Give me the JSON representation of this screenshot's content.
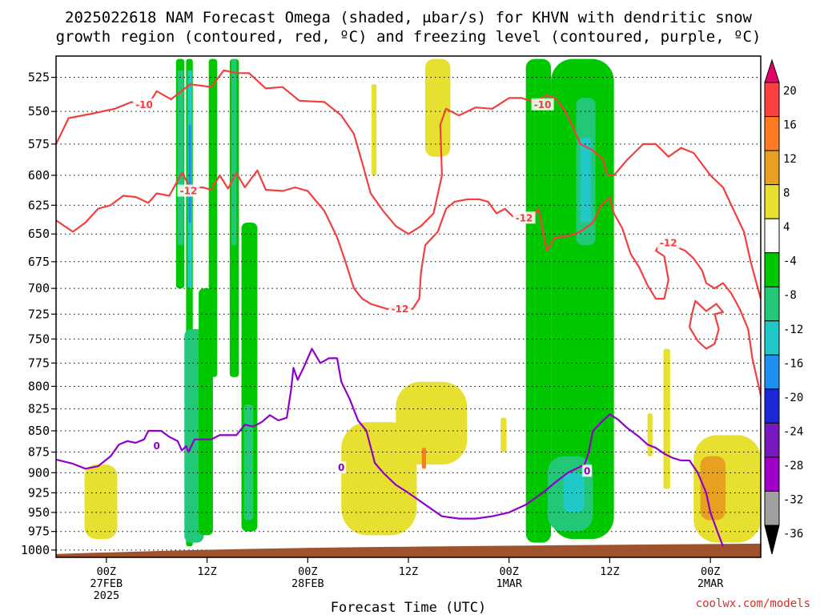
{
  "chart_data": {
    "type": "heatmap",
    "title_line1": "2025022618 NAM Forecast Omega (shaded, μbar/s) for KHVN with dendritic snow",
    "title_line2": "growth region (contoured, red, ºC) and freezing level (contoured, purple, ºC)",
    "xlabel": "Forecast Time (UTC)",
    "x_ticks": [
      {
        "hour": 6,
        "lines": [
          "00Z",
          "27FEB",
          "2025"
        ]
      },
      {
        "hour": 18,
        "lines": [
          "12Z"
        ]
      },
      {
        "hour": 30,
        "lines": [
          "00Z",
          "28FEB"
        ]
      },
      {
        "hour": 42,
        "lines": [
          "12Z"
        ]
      },
      {
        "hour": 54,
        "lines": [
          "00Z",
          "1MAR"
        ]
      },
      {
        "hour": 66,
        "lines": [
          "12Z"
        ]
      },
      {
        "hour": 78,
        "lines": [
          "00Z",
          "2MAR"
        ]
      }
    ],
    "xlim": [
      0,
      84
    ],
    "y_levels": [
      525,
      550,
      575,
      600,
      625,
      650,
      675,
      700,
      725,
      750,
      775,
      800,
      825,
      850,
      875,
      900,
      925,
      950,
      975,
      1000
    ],
    "ylim": [
      1010,
      510
    ],
    "y_scale": "log-pressure",
    "colorbar_ticks": [
      20,
      16,
      12,
      8,
      4,
      -4,
      -8,
      -12,
      -16,
      -20,
      -24,
      -28,
      -32,
      -36
    ],
    "colorbar_colors": [
      "#e8006e",
      "#ff4040",
      "#ff7a20",
      "#e8a020",
      "#e8e030",
      "#ffffff",
      "#00c800",
      "#22c878",
      "#20c8c8",
      "#1e90f0",
      "#1c28d8",
      "#7a18c0",
      "#a000c8",
      "#a0a0a0",
      "#000000"
    ],
    "contour_labels": {
      "dendritic_minus10": "-10",
      "dendritic_minus12": "-12",
      "freezing": "0"
    },
    "colors": {
      "dendritic": "#f04040",
      "freezing": "#9000c8",
      "ground": "#a0522d"
    },
    "shading": [
      {
        "color": "#00c800",
        "t0": 15.5,
        "t1": 16.3,
        "p0": 512,
        "p1": 995
      },
      {
        "color": "#22c878",
        "t0": 15.3,
        "t1": 17.6,
        "p0": 740,
        "p1": 990
      },
      {
        "color": "#20c8c8",
        "t0": 15.7,
        "t1": 16.2,
        "p0": 520,
        "p1": 700
      },
      {
        "color": "#1e90f0",
        "t0": 15.8,
        "t1": 16.1,
        "p0": 560,
        "p1": 640
      },
      {
        "color": "#00c800",
        "t0": 14.3,
        "t1": 15.3,
        "p0": 512,
        "p1": 700
      },
      {
        "color": "#22c878",
        "t0": 14.5,
        "t1": 15.2,
        "p0": 520,
        "p1": 660
      },
      {
        "color": "#00c800",
        "t0": 17.0,
        "t1": 18.7,
        "p0": 700,
        "p1": 980
      },
      {
        "color": "#00c800",
        "t0": 18.2,
        "t1": 19.2,
        "p0": 512,
        "p1": 790
      },
      {
        "color": "#00c800",
        "t0": 20.7,
        "t1": 21.8,
        "p0": 512,
        "p1": 790
      },
      {
        "color": "#22c878",
        "t0": 20.9,
        "t1": 21.5,
        "p0": 512,
        "p1": 660
      },
      {
        "color": "#00c800",
        "t0": 22.1,
        "t1": 24.0,
        "p0": 640,
        "p1": 975
      },
      {
        "color": "#22c878",
        "t0": 22.4,
        "t1": 23.5,
        "p0": 820,
        "p1": 960
      },
      {
        "color": "#e8e030",
        "t0": 3.4,
        "t1": 7.3,
        "p0": 890,
        "p1": 985
      },
      {
        "color": "#e8e030",
        "t0": 34.0,
        "t1": 43.0,
        "p0": 840,
        "p1": 980
      },
      {
        "color": "#e8e030",
        "t0": 40.5,
        "t1": 49.0,
        "p0": 795,
        "p1": 890
      },
      {
        "color": "#ff7a20",
        "t0": 43.6,
        "t1": 44.1,
        "p0": 870,
        "p1": 895
      },
      {
        "color": "#e8e030",
        "t0": 37.6,
        "t1": 38.2,
        "p0": 530,
        "p1": 600
      },
      {
        "color": "#e8e030",
        "t0": 44.0,
        "t1": 47.0,
        "p0": 512,
        "p1": 585
      },
      {
        "color": "#e8e030",
        "t0": 53.0,
        "t1": 53.7,
        "p0": 835,
        "p1": 875
      },
      {
        "color": "#00c800",
        "t0": 56.0,
        "t1": 59.0,
        "p0": 512,
        "p1": 990
      },
      {
        "color": "#00c800",
        "t0": 59.0,
        "t1": 66.5,
        "p0": 512,
        "p1": 985
      },
      {
        "color": "#22c878",
        "t0": 58.6,
        "t1": 64.0,
        "p0": 880,
        "p1": 975
      },
      {
        "color": "#22c878",
        "t0": 62.0,
        "t1": 64.3,
        "p0": 540,
        "p1": 660
      },
      {
        "color": "#20c8c8",
        "t0": 62.5,
        "t1": 63.8,
        "p0": 570,
        "p1": 640
      },
      {
        "color": "#20c8c8",
        "t0": 60.5,
        "t1": 63.0,
        "p0": 900,
        "p1": 950
      },
      {
        "color": "#e8e030",
        "t0": 70.5,
        "t1": 71.1,
        "p0": 830,
        "p1": 880
      },
      {
        "color": "#e8e030",
        "t0": 72.4,
        "t1": 73.2,
        "p0": 760,
        "p1": 920
      },
      {
        "color": "#e8e030",
        "t0": 76.0,
        "t1": 84.0,
        "p0": 855,
        "p1": 990
      },
      {
        "color": "#e8a020",
        "t0": 76.8,
        "t1": 79.8,
        "p0": 880,
        "p1": 960
      }
    ],
    "series": [
      {
        "name": "-10",
        "color": "#f04040",
        "points": [
          [
            0,
            575
          ],
          [
            1.5,
            555
          ],
          [
            4,
            552
          ],
          [
            7,
            548
          ],
          [
            9,
            543
          ],
          [
            10.8,
            547
          ],
          [
            12,
            535
          ],
          [
            13.7,
            541
          ],
          [
            16,
            530
          ],
          [
            18.5,
            532
          ],
          [
            20,
            520
          ],
          [
            21.5,
            522
          ],
          [
            23,
            522
          ],
          [
            25,
            533
          ],
          [
            27,
            532
          ],
          [
            29,
            542
          ],
          [
            32,
            543
          ],
          [
            34,
            553
          ],
          [
            35.5,
            567
          ],
          [
            36.5,
            590
          ],
          [
            37.5,
            615
          ],
          [
            39,
            630
          ],
          [
            40.5,
            643
          ],
          [
            42,
            650
          ],
          [
            43.5,
            643
          ],
          [
            45,
            632
          ],
          [
            46,
            600
          ],
          [
            45.8,
            560
          ],
          [
            46.5,
            548
          ],
          [
            48,
            553
          ],
          [
            50,
            547
          ],
          [
            52,
            548
          ],
          [
            54,
            540
          ],
          [
            55.5,
            540
          ],
          [
            57,
            543
          ],
          [
            58.5,
            538
          ],
          [
            59.5,
            540
          ],
          [
            60.5,
            548
          ],
          [
            61.5,
            560
          ],
          [
            62.5,
            575
          ],
          [
            64,
            580
          ],
          [
            65.2,
            587
          ],
          [
            65.7,
            600
          ],
          [
            66.5,
            600
          ],
          [
            68,
            588
          ],
          [
            70,
            575
          ],
          [
            71.5,
            575
          ],
          [
            73,
            585
          ],
          [
            74.5,
            578
          ],
          [
            76,
            582
          ],
          [
            78,
            600
          ],
          [
            79.5,
            610
          ],
          [
            80.5,
            625
          ],
          [
            82,
            648
          ],
          [
            82.8,
            675
          ],
          [
            84,
            710
          ]
        ]
      },
      {
        "name": "-12",
        "color": "#f04040",
        "points": [
          [
            0,
            638
          ],
          [
            2,
            648
          ],
          [
            3.5,
            640
          ],
          [
            5,
            628
          ],
          [
            6.5,
            625
          ],
          [
            8,
            617
          ],
          [
            9.5,
            618
          ],
          [
            11,
            623
          ],
          [
            12,
            615
          ],
          [
            13.5,
            617
          ],
          [
            15,
            598
          ],
          [
            16,
            610
          ],
          [
            17.5,
            610
          ],
          [
            18.5,
            612
          ],
          [
            19.5,
            600
          ],
          [
            20.5,
            611
          ],
          [
            21.5,
            598
          ],
          [
            22.5,
            610
          ],
          [
            24,
            596
          ],
          [
            25,
            612
          ],
          [
            27,
            613
          ],
          [
            28.5,
            610
          ],
          [
            30,
            613
          ],
          [
            32,
            630
          ],
          [
            33.5,
            653
          ],
          [
            34.5,
            675
          ],
          [
            35.5,
            700
          ],
          [
            36.5,
            710
          ],
          [
            37.5,
            715
          ],
          [
            39.5,
            720
          ],
          [
            40.5,
            718
          ],
          [
            41.5,
            718
          ],
          [
            42.5,
            720
          ],
          [
            43.3,
            710
          ],
          [
            43.5,
            685
          ],
          [
            44,
            660
          ],
          [
            45.5,
            648
          ],
          [
            46.5,
            628
          ],
          [
            47.5,
            622
          ],
          [
            49,
            620
          ],
          [
            50.5,
            620
          ],
          [
            51.5,
            622
          ],
          [
            52.5,
            632
          ],
          [
            53.5,
            628
          ],
          [
            54.5,
            635
          ],
          [
            55.5,
            633
          ],
          [
            56.5,
            638
          ],
          [
            57.5,
            628
          ],
          [
            58.5,
            665
          ],
          [
            59.5,
            653
          ],
          [
            61,
            652
          ],
          [
            62.5,
            648
          ],
          [
            64,
            640
          ],
          [
            65,
            625
          ],
          [
            66,
            618
          ],
          [
            66.5,
            632
          ],
          [
            67.5,
            645
          ],
          [
            68.5,
            668
          ],
          [
            69.5,
            680
          ],
          [
            70.5,
            697
          ],
          [
            71.5,
            710
          ],
          [
            72.5,
            710
          ],
          [
            73,
            692
          ],
          [
            72.5,
            670
          ],
          [
            71.5,
            665
          ],
          [
            72,
            658
          ],
          [
            73.5,
            660
          ],
          [
            75,
            665
          ],
          [
            76,
            672
          ],
          [
            77,
            683
          ],
          [
            77.5,
            695
          ],
          [
            78.5,
            700
          ],
          [
            79.5,
            695
          ],
          [
            80.5,
            705
          ],
          [
            81.5,
            720
          ],
          [
            82.5,
            740
          ],
          [
            83,
            770
          ],
          [
            83.5,
            790
          ],
          [
            84,
            810
          ]
        ]
      },
      {
        "name": "-12b",
        "color": "#f04040",
        "points": [
          [
            75.5,
            738
          ],
          [
            76.5,
            752
          ],
          [
            77.5,
            760
          ],
          [
            78.5,
            755
          ],
          [
            79,
            740
          ],
          [
            78.5,
            725
          ],
          [
            79.5,
            723
          ],
          [
            78.7,
            715
          ],
          [
            77.5,
            722
          ],
          [
            76.2,
            712
          ],
          [
            75.8,
            725
          ],
          [
            75.5,
            738
          ]
        ]
      },
      {
        "name": "0",
        "color": "#9000c8",
        "points": [
          [
            0,
            884
          ],
          [
            2,
            889
          ],
          [
            3.5,
            895
          ],
          [
            5,
            892
          ],
          [
            6.5,
            880
          ],
          [
            7.5,
            866
          ],
          [
            8.5,
            862
          ],
          [
            9.5,
            864
          ],
          [
            10.5,
            860
          ],
          [
            11,
            850
          ],
          [
            12.5,
            850
          ],
          [
            13.5,
            857
          ],
          [
            14.5,
            862
          ],
          [
            15,
            873
          ],
          [
            15.5,
            868
          ],
          [
            15.8,
            875
          ],
          [
            16.5,
            860
          ],
          [
            17.5,
            860
          ],
          [
            18.5,
            860
          ],
          [
            19.5,
            855
          ],
          [
            20.5,
            855
          ],
          [
            21.5,
            855
          ],
          [
            22.5,
            843
          ],
          [
            23.5,
            845
          ],
          [
            24.5,
            840
          ],
          [
            25.5,
            832
          ],
          [
            26.5,
            838
          ],
          [
            27.5,
            835
          ],
          [
            28,
            805
          ],
          [
            28.3,
            780
          ],
          [
            28.8,
            793
          ],
          [
            29.5,
            780
          ],
          [
            30.5,
            760
          ],
          [
            31.5,
            775
          ],
          [
            32.5,
            770
          ],
          [
            33.5,
            770
          ],
          [
            34,
            795
          ],
          [
            35,
            814
          ],
          [
            36,
            838
          ],
          [
            37,
            850
          ],
          [
            38,
            888
          ],
          [
            39,
            900
          ],
          [
            40.5,
            915
          ],
          [
            42,
            925
          ],
          [
            44,
            940
          ],
          [
            46,
            955
          ],
          [
            48,
            958
          ],
          [
            50,
            958
          ],
          [
            52,
            955
          ],
          [
            54,
            950
          ],
          [
            56,
            940
          ],
          [
            58,
            925
          ],
          [
            59.5,
            912
          ],
          [
            61,
            900
          ],
          [
            62,
            895
          ],
          [
            63,
            890
          ],
          [
            63.5,
            875
          ],
          [
            64,
            850
          ],
          [
            65,
            840
          ],
          [
            66,
            831
          ],
          [
            67,
            837
          ],
          [
            68,
            846
          ],
          [
            69.5,
            857
          ],
          [
            70.5,
            866
          ],
          [
            71.5,
            870
          ],
          [
            72.5,
            877
          ],
          [
            73.5,
            882
          ],
          [
            74.5,
            885
          ],
          [
            75.5,
            885
          ],
          [
            76.5,
            900
          ],
          [
            77.5,
            925
          ],
          [
            78,
            950
          ],
          [
            78.5,
            965
          ],
          [
            79,
            980
          ],
          [
            79.5,
            995
          ]
        ]
      }
    ]
  },
  "credit": "coolwx.com/models"
}
